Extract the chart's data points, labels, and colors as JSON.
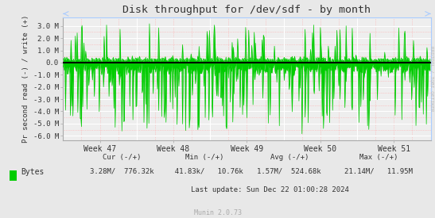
{
  "title": "Disk throughput for /dev/sdf - by month",
  "ylabel": "Pr second read (-) / write (+)",
  "xlabel_ticks": [
    "Week 47",
    "Week 48",
    "Week 49",
    "Week 50",
    "Week 51"
  ],
  "ylim": [
    -6400000,
    3700000
  ],
  "yticks": [
    -6000000,
    -5000000,
    -4000000,
    -3000000,
    -2000000,
    -1000000,
    0,
    1000000,
    2000000,
    3000000
  ],
  "ytick_labels": [
    "-6.0 M",
    "-5.0 M",
    "-4.0 M",
    "-3.0 M",
    "-2.0 M",
    "-1.0 M",
    "0.0",
    "1.0 M",
    "2.0 M",
    "3.0 M"
  ],
  "bg_color": "#e8e8e8",
  "plot_bg_color": "#eeeeee",
  "grid_color_major": "#ffffff",
  "grid_color_minor": "#ffaaaa",
  "line_color": "#00cc00",
  "fill_color": "#00cc00",
  "zero_line_color": "#000000",
  "axis_color": "#aaaaaa",
  "text_color": "#333333",
  "legend_label": "Bytes",
  "last_update": "Last update: Sun Dec 22 01:00:28 2024",
  "munin_version": "Munin 2.0.73",
  "side_label": "RRDTOOL / TOBI OETIKER",
  "num_points": 600,
  "seed": 42
}
